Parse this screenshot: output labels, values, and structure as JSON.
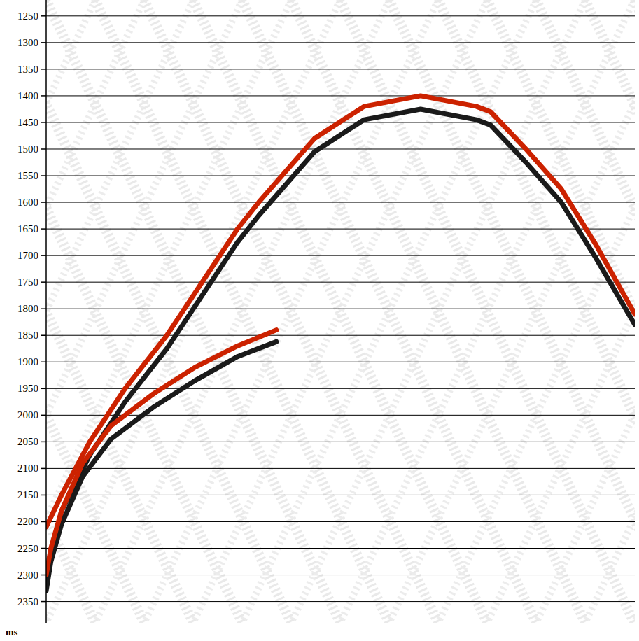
{
  "chart_data": {
    "type": "line",
    "y_label": "ms",
    "xlim": [
      0,
      100
    ],
    "ylim": [
      2390,
      1220
    ],
    "yticks": [
      1250,
      1300,
      1350,
      1400,
      1450,
      1500,
      1550,
      1600,
      1650,
      1700,
      1750,
      1800,
      1850,
      1900,
      1950,
      2000,
      2050,
      2100,
      2150,
      2200,
      2250,
      2300,
      2350
    ],
    "grid": true,
    "tick_labels": "y",
    "series": [
      {
        "color": "#1a1a1a",
        "line_style": "solid",
        "x": [
          0,
          2.6,
          7.4,
          13.4,
          20.5,
          26.5,
          32.5,
          36.1,
          45.6,
          54.0,
          63.6,
          73.1,
          75.5,
          81.5,
          87.5,
          93.4,
          100
        ],
        "values": [
          2300,
          2180,
          2075,
          1975,
          1875,
          1775,
          1675,
          1625,
          1505,
          1445,
          1425,
          1445,
          1455,
          1525,
          1600,
          1705,
          1830
        ]
      },
      {
        "color": "#cc2200",
        "line_style": "solid",
        "x": [
          0,
          2.6,
          7.4,
          13.4,
          20.5,
          26.5,
          32.5,
          36.1,
          45.6,
          54.0,
          63.6,
          73.1,
          75.5,
          81.5,
          87.5,
          93.4,
          100
        ],
        "values": [
          2210,
          2150,
          2050,
          1950,
          1850,
          1750,
          1650,
          1600,
          1480,
          1420,
          1400,
          1420,
          1430,
          1500,
          1575,
          1680,
          1810
        ]
      },
      {
        "color": "#1a1a1a",
        "line_style": "solid",
        "x": [
          0,
          0.8,
          2.6,
          6.2,
          11.0,
          18.2,
          25.3,
          32.5,
          39.1
        ],
        "values": [
          2330,
          2275,
          2205,
          2115,
          2045,
          1985,
          1935,
          1890,
          1862
        ]
      },
      {
        "color": "#cc2200",
        "line_style": "solid",
        "x": [
          0,
          0.8,
          2.6,
          6.2,
          11.0,
          18.2,
          25.3,
          32.5,
          39.1
        ],
        "values": [
          2300,
          2250,
          2180,
          2090,
          2020,
          1960,
          1910,
          1870,
          1840
        ]
      }
    ]
  }
}
